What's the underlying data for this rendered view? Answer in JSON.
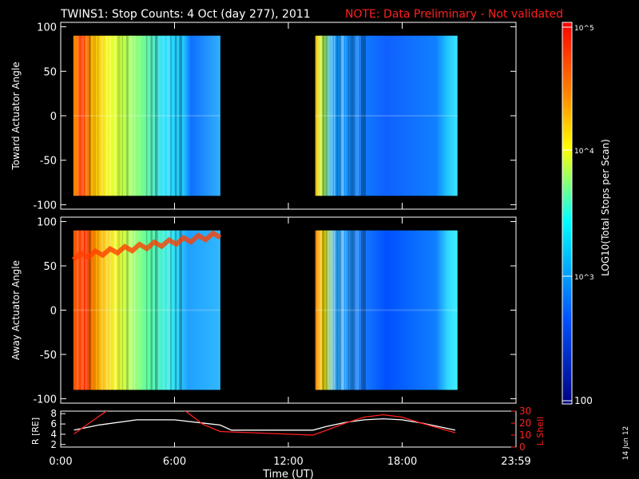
{
  "header": {
    "title": "TWINS1: Stop Counts:  4 Oct (day 277), 2011",
    "note": "NOTE: Data Preliminary - Not validated"
  },
  "side_date": "14 Jun 12",
  "colors": {
    "note": "#ff2020",
    "background": "#000000",
    "foreground": "#ffffff"
  },
  "chart_data": [
    {
      "type": "heatmap",
      "ylabel": "Toward Actuator Angle",
      "ylim": [
        -105,
        105
      ],
      "yticks": [
        "100",
        "50",
        "0",
        "-50",
        "-100"
      ],
      "x_ticks": [
        "0:00",
        "6:00",
        "12:00",
        "18:00",
        "23:59"
      ],
      "data_blocks": [
        {
          "start": "0:40",
          "end": "8:25",
          "angle_range": [
            -90,
            90
          ]
        },
        {
          "start": "13:25",
          "end": "20:55",
          "angle_range": [
            -90,
            90
          ]
        }
      ]
    },
    {
      "type": "heatmap",
      "ylabel": "Away Actuator Angle",
      "ylim": [
        -105,
        105
      ],
      "yticks": [
        "100",
        "50",
        "0",
        "-50",
        "-100"
      ],
      "x_ticks": [
        "0:00",
        "6:00",
        "12:00",
        "18:00",
        "23:59"
      ],
      "data_blocks": [
        {
          "start": "0:40",
          "end": "8:25",
          "angle_range": [
            -90,
            90
          ]
        },
        {
          "start": "13:25",
          "end": "20:55",
          "angle_range": [
            -90,
            90
          ]
        }
      ]
    },
    {
      "type": "line",
      "xlabel": "Time (UT)",
      "x_ticks": [
        "0:00",
        "6:00",
        "12:00",
        "18:00",
        "23:59"
      ],
      "ylabel": "R [RE]",
      "ylim": [
        1.5,
        8.5
      ],
      "yticks": [
        "8",
        "6",
        "4",
        "2"
      ],
      "y2label": "L Shell",
      "y2lim": [
        0,
        30
      ],
      "y2ticks": [
        "30",
        "20",
        "10",
        "0"
      ],
      "series": [
        {
          "axis": "left",
          "color": "#ffffff",
          "x": [
            0.7,
            2,
            4,
            6,
            8.4,
            9,
            11,
            13.3,
            14,
            15,
            16,
            17,
            18,
            19,
            20.8
          ],
          "y": [
            4.8,
            5.8,
            6.8,
            6.8,
            5.8,
            4.8,
            4.8,
            4.8,
            5.5,
            6.3,
            6.8,
            7.0,
            6.8,
            6.2,
            4.8
          ]
        },
        {
          "axis": "right",
          "color": "#ff2020",
          "x": [
            0.7,
            1.5,
            2.5,
            6.5,
            7.5,
            8.4,
            13.3,
            14,
            15,
            16,
            17,
            18,
            19,
            20.8
          ],
          "y": [
            11,
            20,
            31,
            31,
            19,
            13,
            10,
            14,
            20,
            25,
            27,
            25,
            20,
            12
          ]
        }
      ]
    }
  ],
  "colorbar": {
    "label": "LOG10(Total Stops per Scan)",
    "ticks": [
      "10^5",
      "10^4",
      "10^3",
      "100"
    ],
    "colors": [
      "#ff0000",
      "#ff8000",
      "#ffff00",
      "#00ffff",
      "#0060ff",
      "#000080"
    ]
  }
}
